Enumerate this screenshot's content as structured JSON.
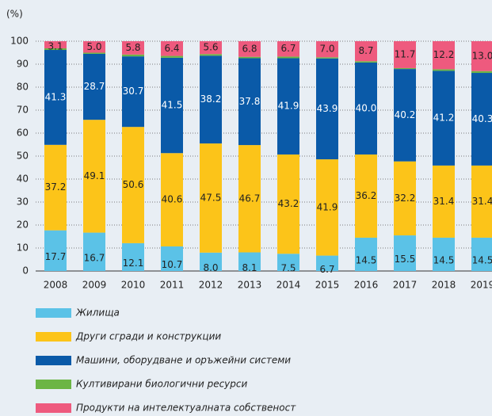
{
  "chart_data": {
    "type": "stacked_bar",
    "ylabel": "(%)",
    "categories": [
      "2008",
      "2009",
      "2010",
      "2011",
      "2012",
      "2013",
      "2014",
      "2015",
      "2016",
      "2017",
      "2018",
      "2019"
    ],
    "series": [
      {
        "name": "Жилища",
        "color": "#5bc2e7",
        "values": [
          17.7,
          16.7,
          12.1,
          10.7,
          8.0,
          8.1,
          7.5,
          6.7,
          14.5,
          15.5,
          14.5,
          14.5
        ],
        "value_labels": [
          "17.7",
          "16.7",
          "12.1",
          "10.7",
          "8.0",
          "8.1",
          "7.5",
          "6.7",
          "14.5",
          "15.5",
          "14.5",
          "14.5"
        ]
      },
      {
        "name": "Други сгради и конструкции",
        "color": "#fcc419",
        "values": [
          37.2,
          49.1,
          50.6,
          40.6,
          47.5,
          46.7,
          43.2,
          41.9,
          36.2,
          32.2,
          31.4,
          31.4
        ],
        "value_labels": [
          "37.2",
          "49.1",
          "50.6",
          "40.6",
          "47.5",
          "46.7",
          "43.2",
          "41.9",
          "36.2",
          "32.2",
          "31.4",
          "31.4"
        ]
      },
      {
        "name": "Машини, оборудване и оръжейни системи",
        "color": "#0a5aa8",
        "values": [
          41.3,
          28.7,
          30.7,
          41.5,
          38.2,
          37.8,
          41.9,
          43.9,
          40.0,
          40.2,
          41.2,
          40.3
        ],
        "value_labels": [
          "41.3",
          "28.7",
          "30.7",
          "41.5",
          "38.2",
          "37.8",
          "41.9",
          "43.9",
          "40.0",
          "40.2",
          "41.2",
          "40.3"
        ]
      },
      {
        "name": "Култивирани биологични ресурси",
        "color": "#6cb545",
        "values": [
          0.7,
          0.5,
          0.8,
          0.8,
          0.7,
          0.6,
          0.7,
          0.5,
          0.6,
          0.4,
          0.7,
          0.8
        ]
      },
      {
        "name": "Продукти на интелектуалната собственост",
        "color": "#ee5a7e",
        "values": [
          3.1,
          5.0,
          5.8,
          6.4,
          5.6,
          6.8,
          6.7,
          7.0,
          8.7,
          11.7,
          12.2,
          13.0
        ],
        "value_labels": [
          "3.1",
          "5.0",
          "5.8",
          "6.4",
          "5.6",
          "6.8",
          "6.7",
          "7.0",
          "8.7",
          "11.7",
          "12.2",
          "13.0"
        ]
      }
    ],
    "ylim": [
      0,
      100
    ],
    "yticks": [
      0,
      10,
      20,
      30,
      40,
      50,
      60,
      70,
      80,
      90,
      100
    ],
    "grid": true
  }
}
